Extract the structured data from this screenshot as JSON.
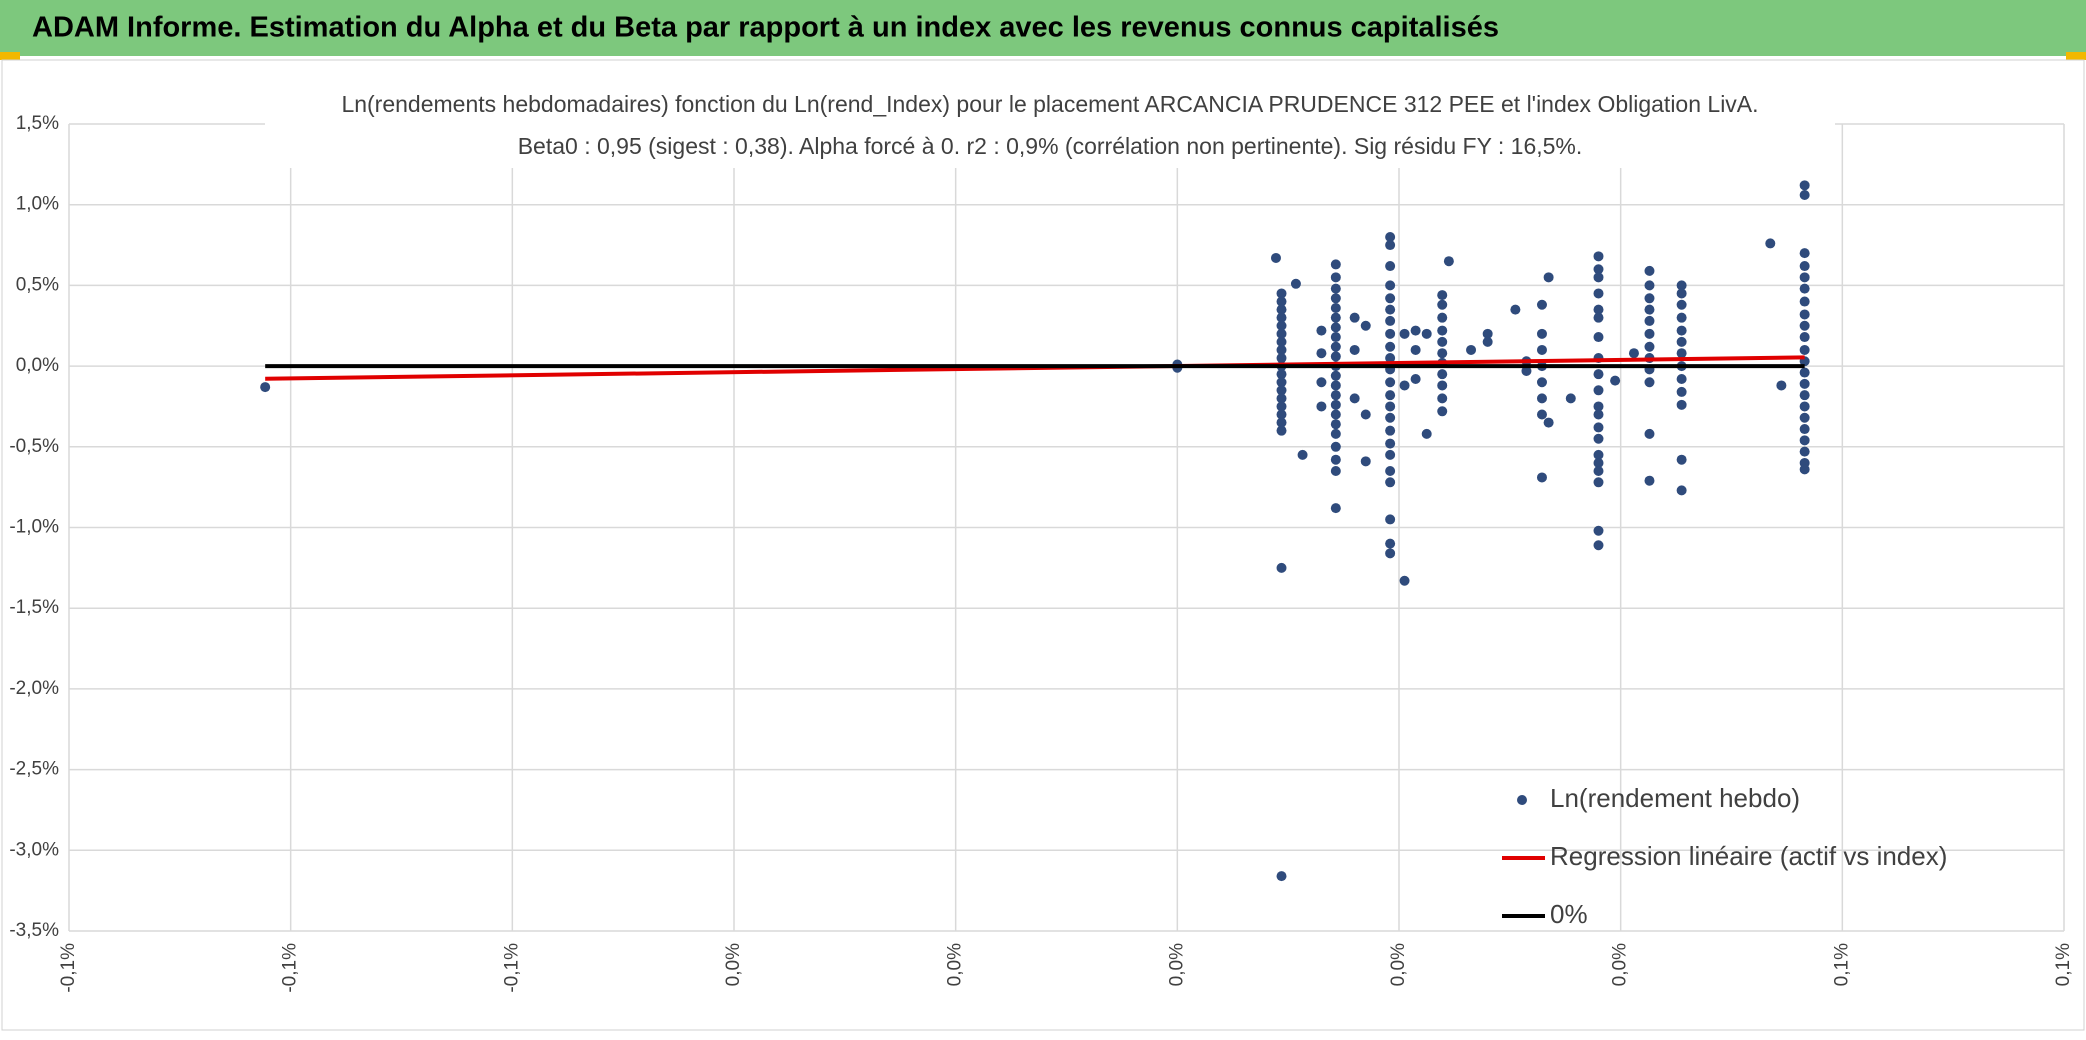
{
  "header": {
    "title": "ADAM Informe. Estimation du Alpha et du Beta par rapport à un index avec les revenus connus capitalisés"
  },
  "chart_data": {
    "type": "scatter",
    "title": "Ln(rendements hebdomadaires) fonction du Ln(rend_Index) pour le placement ARCANCIA PRUDENCE 312 PEE et l'index Obligation LivA.",
    "subtitle": "Beta0 : 0,95 (sigest : 0,38). Alpha forcé à 0. r2 : 0,9% (corrélation non pertinente). Sig résidu FY : 16,5%.",
    "xlim": [
      -0.1,
      0.08
    ],
    "xticks": [
      {
        "value": -0.1,
        "label": "-0,1%"
      },
      {
        "value": -0.08,
        "label": "-0,1%"
      },
      {
        "value": -0.06,
        "label": "-0,1%"
      },
      {
        "value": -0.04,
        "label": "0,0%"
      },
      {
        "value": -0.02,
        "label": "0,0%"
      },
      {
        "value": 0,
        "label": "0,0%"
      },
      {
        "value": 0.02,
        "label": "0,0%"
      },
      {
        "value": 0.04,
        "label": "0,0%"
      },
      {
        "value": 0.06,
        "label": "0,1%"
      },
      {
        "value": 0.08,
        "label": "0,1%"
      }
    ],
    "ylim": [
      -3.5,
      1.5
    ],
    "yticks": [
      {
        "value": -3.5,
        "label": "-3,5%"
      },
      {
        "value": -3,
        "label": "-3,0%"
      },
      {
        "value": -2.5,
        "label": "-2,5%"
      },
      {
        "value": -2,
        "label": "-2,0%"
      },
      {
        "value": -1.5,
        "label": "-1,5%"
      },
      {
        "value": -1,
        "label": "-1,0%"
      },
      {
        "value": -0.5,
        "label": "-0,5%"
      },
      {
        "value": 0,
        "label": "0,0%"
      },
      {
        "value": 0.5,
        "label": "0,5%"
      },
      {
        "value": 1,
        "label": "1,0%"
      },
      {
        "value": 1.5,
        "label": "1,5%"
      }
    ],
    "grid": true,
    "legend": "bottom-right",
    "series": [
      {
        "name": "Ln(rendement hebdo)",
        "type": "scatter",
        "color": "#2f4b7c",
        "x": [
          -0.0823,
          0,
          0,
          0.0089,
          0.0094,
          0.0094,
          0.0094,
          0.0094,
          0.0094,
          0.0094,
          0.0094,
          0.0094,
          0.0094,
          0.0094,
          0.0094,
          0.0094,
          0.0094,
          0.0094,
          0.0094,
          0.0094,
          0.0094,
          0.0094,
          0.0094,
          0.0094,
          0.0107,
          0.0113,
          0.013,
          0.013,
          0.013,
          0.013,
          0.0143,
          0.0143,
          0.0143,
          0.0143,
          0.0143,
          0.0143,
          0.0143,
          0.0143,
          0.0143,
          0.0143,
          0.0143,
          0.0143,
          0.0143,
          0.0143,
          0.0143,
          0.0143,
          0.0143,
          0.0143,
          0.0143,
          0.0143,
          0.0143,
          0.0143,
          0.016,
          0.016,
          0.016,
          0.017,
          0.017,
          0.017,
          0.0192,
          0.0192,
          0.0192,
          0.0192,
          0.0192,
          0.0192,
          0.0192,
          0.0192,
          0.0192,
          0.0192,
          0.0192,
          0.0192,
          0.0192,
          0.0192,
          0.0192,
          0.0192,
          0.0192,
          0.0192,
          0.0192,
          0.0192,
          0.0192,
          0.0192,
          0.0192,
          0.0205,
          0.0205,
          0.0205,
          0.0215,
          0.0215,
          0.0215,
          0.0225,
          0.0225,
          0.0239,
          0.0239,
          0.0239,
          0.0239,
          0.0239,
          0.0239,
          0.0239,
          0.0239,
          0.0239,
          0.0239,
          0.0239,
          0.0245,
          0.0265,
          0.028,
          0.028,
          0.0305,
          0.0315,
          0.0315,
          0.0329,
          0.0329,
          0.0329,
          0.0329,
          0.0329,
          0.0329,
          0.0329,
          0.0329,
          0.0335,
          0.0335,
          0.0355,
          0.038,
          0.038,
          0.038,
          0.038,
          0.038,
          0.038,
          0.038,
          0.038,
          0.038,
          0.038,
          0.038,
          0.038,
          0.038,
          0.038,
          0.038,
          0.038,
          0.038,
          0.038,
          0.038,
          0.038,
          0.0395,
          0.0412,
          0.0426,
          0.0426,
          0.0426,
          0.0426,
          0.0426,
          0.0426,
          0.0426,
          0.0426,
          0.0426,
          0.0426,
          0.0426,
          0.0426,
          0.0455,
          0.0455,
          0.0455,
          0.0455,
          0.0455,
          0.0455,
          0.0455,
          0.0455,
          0.0455,
          0.0455,
          0.0455,
          0.0455,
          0.0455,
          0.0535,
          0.0545,
          0.0566,
          0.0566,
          0.0566,
          0.0566,
          0.0566,
          0.0566,
          0.0566,
          0.0566,
          0.0566,
          0.0566,
          0.0566,
          0.0566,
          0.0566,
          0.0566,
          0.0566,
          0.0566,
          0.0566,
          0.0566,
          0.0566,
          0.0566,
          0.0566,
          0.0566
        ],
        "values": [
          -0.13,
          0.01,
          -0.01,
          0.67,
          0.45,
          0.4,
          0.35,
          0.3,
          0.25,
          0.2,
          0.15,
          0.1,
          0.05,
          0,
          -0.05,
          -0.1,
          -0.15,
          -0.2,
          -0.25,
          -0.3,
          -0.35,
          -0.4,
          -1.25,
          -3.16,
          0.51,
          -0.55,
          0.22,
          0.08,
          -0.1,
          -0.25,
          0.63,
          0.55,
          0.48,
          0.42,
          0.36,
          0.3,
          0.24,
          0.18,
          0.12,
          0.06,
          0,
          -0.06,
          -0.12,
          -0.18,
          -0.24,
          -0.3,
          -0.36,
          -0.42,
          -0.5,
          -0.58,
          -0.65,
          -0.88,
          0.3,
          0.1,
          -0.2,
          0.25,
          -0.59,
          -0.3,
          0.8,
          0.75,
          0.62,
          0.5,
          0.42,
          0.35,
          0.28,
          0.2,
          0.12,
          0.05,
          -0.02,
          -0.1,
          -0.18,
          -0.25,
          -0.32,
          -0.4,
          -0.48,
          -0.55,
          -0.65,
          -0.72,
          -0.95,
          -1.1,
          -1.16,
          -1.33,
          0.2,
          -0.12,
          0.22,
          0.1,
          -0.08,
          0.2,
          -0.42,
          0.44,
          0.38,
          0.3,
          0.22,
          0.15,
          0.08,
          0.02,
          -0.05,
          -0.12,
          -0.2,
          -0.28,
          0.65,
          0.1,
          0.2,
          0.15,
          0.35,
          0.03,
          -0.03,
          0.38,
          0.2,
          0.1,
          0,
          -0.1,
          -0.2,
          -0.3,
          -0.69,
          0.55,
          -0.35,
          -0.2,
          0.68,
          0.6,
          0.55,
          0.45,
          0.35,
          0.3,
          0.18,
          0.05,
          -0.05,
          -0.15,
          -0.25,
          -0.3,
          -0.38,
          -0.45,
          -0.55,
          -0.6,
          -0.65,
          -0.72,
          -1.02,
          -1.11,
          -0.09,
          0.08,
          0.59,
          0.5,
          0.42,
          0.35,
          0.28,
          0.2,
          0.12,
          0.05,
          -0.02,
          -0.1,
          -0.42,
          -0.71,
          0.5,
          0.45,
          0.38,
          0.3,
          0.22,
          0.15,
          0.08,
          0,
          -0.08,
          -0.16,
          -0.24,
          -0.58,
          -0.77,
          0.76,
          -0.12,
          1.12,
          1.06,
          0.7,
          0.62,
          0.55,
          0.48,
          0.4,
          0.32,
          0.25,
          0.18,
          0.1,
          0.03,
          -0.04,
          -0.11,
          -0.18,
          -0.25,
          -0.32,
          -0.39,
          -0.46,
          -0.53,
          -0.6,
          -0.64
        ]
      },
      {
        "name": "Regression linéaire (actif vs index)",
        "type": "line",
        "color": "#e00000",
        "x": [
          -0.0823,
          0.0566
        ],
        "values": [
          -0.078,
          0.054
        ]
      },
      {
        "name": "0%",
        "type": "line",
        "color": "#000000",
        "x": [
          -0.0823,
          0.0566
        ],
        "values": [
          0,
          0
        ]
      }
    ]
  }
}
